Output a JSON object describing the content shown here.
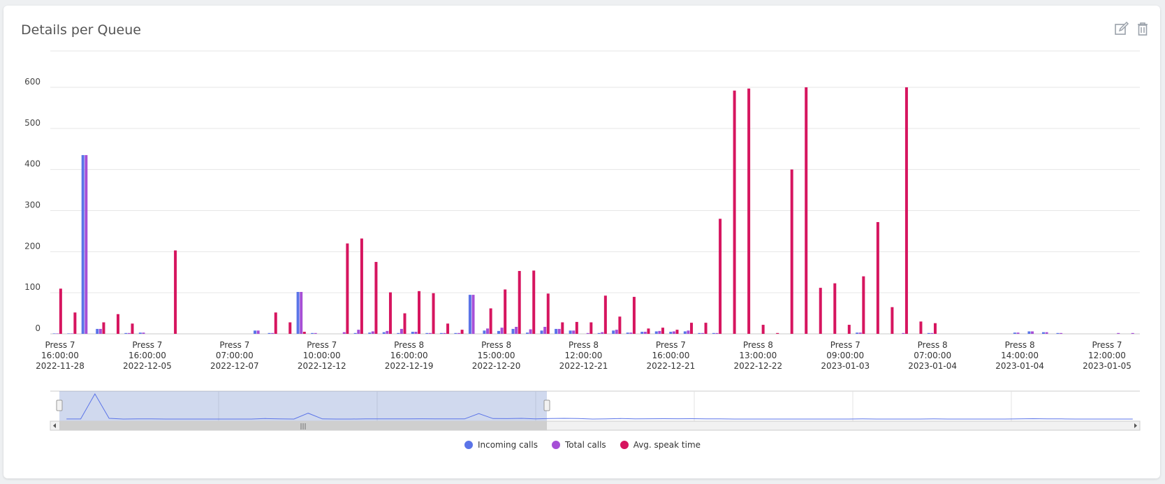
{
  "panel": {
    "title": "Details per Queue",
    "edit_icon": "pencil-edit-icon",
    "delete_icon": "trash-icon"
  },
  "legend": [
    {
      "label": "Incoming calls",
      "color": "#5b74e8"
    },
    {
      "label": "Total calls",
      "color": "#a64fd6"
    },
    {
      "label": "Avg. speak time",
      "color": "#d6155f"
    }
  ],
  "chart_data": {
    "type": "bar",
    "ylim": [
      0,
      650
    ],
    "yticks": [
      0,
      100,
      200,
      300,
      400,
      500,
      600
    ],
    "grid": true,
    "legend_position": "bottom",
    "x_tick_labels": [
      [
        "Press 7",
        "16:00:00",
        "2022-11-28"
      ],
      [
        "Press 7",
        "16:00:00",
        "2022-12-05"
      ],
      [
        "Press 7",
        "07:00:00",
        "2022-12-07"
      ],
      [
        "Press 7",
        "10:00:00",
        "2022-12-12"
      ],
      [
        "Press 8",
        "16:00:00",
        "2022-12-19"
      ],
      [
        "Press 8",
        "15:00:00",
        "2022-12-20"
      ],
      [
        "Press 8",
        "12:00:00",
        "2022-12-21"
      ],
      [
        "Press 7",
        "16:00:00",
        "2022-12-21"
      ],
      [
        "Press 8",
        "13:00:00",
        "2022-12-22"
      ],
      [
        "Press 7",
        "09:00:00",
        "2023-01-03"
      ],
      [
        "Press 8",
        "07:00:00",
        "2023-01-04"
      ],
      [
        "Press 8",
        "14:00:00",
        "2023-01-04"
      ],
      [
        "Press 7",
        "12:00:00",
        "2023-01-05"
      ]
    ],
    "series": [
      {
        "name": "Incoming calls",
        "color": "#5b74e8",
        "values": [
          1,
          1,
          435,
          12,
          0,
          2,
          3,
          0,
          0,
          0,
          0,
          0,
          0,
          0,
          8,
          2,
          0,
          102,
          2,
          0,
          0,
          2,
          3,
          4,
          2,
          5,
          2,
          2,
          2,
          95,
          8,
          7,
          12,
          3,
          8,
          12,
          8,
          0,
          2,
          8,
          3,
          5,
          6,
          5,
          6,
          2,
          2,
          0,
          0,
          0,
          0,
          0,
          0,
          0,
          0,
          0,
          3,
          0,
          0,
          0,
          0,
          2,
          0,
          0,
          0,
          0,
          0,
          3,
          6,
          4,
          2,
          0,
          0,
          0,
          0,
          0
        ]
      },
      {
        "name": "Total calls",
        "color": "#a64fd6",
        "values": [
          1,
          1,
          435,
          12,
          0,
          2,
          3,
          0,
          0,
          0,
          0,
          0,
          0,
          0,
          8,
          2,
          0,
          102,
          2,
          0,
          4,
          10,
          6,
          7,
          12,
          5,
          2,
          2,
          2,
          95,
          13,
          15,
          17,
          11,
          17,
          12,
          8,
          2,
          4,
          10,
          3,
          5,
          7,
          6,
          8,
          2,
          2,
          0,
          0,
          0,
          0,
          0,
          0,
          0,
          0,
          0,
          3,
          0,
          0,
          2,
          0,
          2,
          0,
          0,
          0,
          0,
          0,
          3,
          6,
          4,
          2,
          0,
          0,
          0,
          2,
          2
        ]
      },
      {
        "name": "Avg. speak time",
        "color": "#d6155f",
        "values": [
          110,
          52,
          0,
          28,
          48,
          25,
          0,
          0,
          203,
          0,
          0,
          0,
          0,
          0,
          0,
          52,
          28,
          5,
          0,
          0,
          220,
          232,
          175,
          101,
          50,
          104,
          99,
          25,
          10,
          0,
          62,
          108,
          153,
          154,
          98,
          28,
          29,
          28,
          93,
          42,
          90,
          13,
          15,
          10,
          27,
          27,
          280,
          592,
          597,
          22,
          2,
          400,
          600,
          112,
          123,
          22,
          140,
          272,
          65,
          600,
          30,
          26,
          0,
          0,
          0,
          0,
          0,
          0,
          0,
          0,
          0,
          0,
          0,
          0,
          0,
          0
        ]
      }
    ]
  },
  "navigator": {
    "scroll_label": "|||"
  }
}
